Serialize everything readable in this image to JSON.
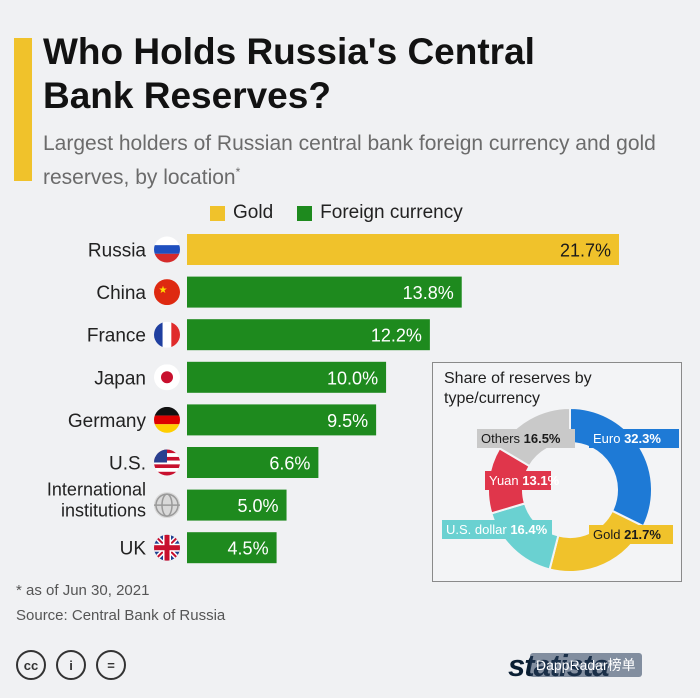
{
  "header": {
    "title": "Who Holds Russia's Central Bank Reserves?",
    "subtitle": "Largest holders of Russian central bank foreign currency and gold reserves, by location",
    "subtitle_mark": "*"
  },
  "legend": {
    "gold_label": "Gold",
    "fx_label": "Foreign currency"
  },
  "colors": {
    "gold": "#f0c22b",
    "fx": "#1e8a1e",
    "accent": "#f0c22b",
    "euro": "#1e7ad6",
    "yuan": "#e0364b",
    "usd": "#6ad1d1",
    "others": "#c9c9c9"
  },
  "chart_data": [
    {
      "type": "bar",
      "orientation": "horizontal",
      "categories": [
        "Russia",
        "China",
        "France",
        "Japan",
        "Germany",
        "U.S.",
        "International institutions",
        "UK"
      ],
      "values": [
        21.7,
        13.8,
        12.2,
        10.0,
        9.5,
        6.6,
        5.0,
        4.5
      ],
      "value_labels": [
        "21.7%",
        "13.8%",
        "12.2%",
        "10.0%",
        "9.5%",
        "6.6%",
        "5.0%",
        "4.5%"
      ],
      "series_type": [
        "Gold",
        "Foreign currency",
        "Foreign currency",
        "Foreign currency",
        "Foreign currency",
        "Foreign currency",
        "Foreign currency",
        "Foreign currency"
      ],
      "icons": [
        "russia-flag-icon",
        "china-flag-icon",
        "france-flag-icon",
        "japan-flag-icon",
        "germany-flag-icon",
        "us-flag-icon",
        "globe-icon",
        "uk-flag-icon"
      ],
      "title": "Who Holds Russia's Central Bank Reserves?",
      "legend": [
        "Gold",
        "Foreign currency"
      ],
      "xlim": [
        0,
        21.7
      ],
      "grid": false
    },
    {
      "type": "pie",
      "donut": true,
      "title": "Share of reserves by type/currency",
      "slices": [
        {
          "label": "Euro",
          "value": 32.3,
          "value_label": "32.3%",
          "color": "#1e7ad6"
        },
        {
          "label": "Gold",
          "value": 21.7,
          "value_label": "21.7%",
          "color": "#f0c22b"
        },
        {
          "label": "U.S. dollar",
          "value": 16.4,
          "value_label": "16.4%",
          "color": "#6ad1d1"
        },
        {
          "label": "Yuan",
          "value": 13.1,
          "value_label": "13.1%",
          "color": "#e0364b"
        },
        {
          "label": "Others",
          "value": 16.5,
          "value_label": "16.5%",
          "color": "#c9c9c9"
        }
      ]
    }
  ],
  "inset": {
    "title": "Share of reserves by type/currency"
  },
  "footer": {
    "footnote": "* as of Jun 30, 2021",
    "source": "Source: Central Bank of Russia",
    "license_icons": [
      "cc-icon",
      "person-icon",
      "equals-icon"
    ],
    "license_glyphs": [
      "cc",
      "i",
      "="
    ],
    "brand": "statista",
    "watermark": "DappRadar榜单"
  }
}
